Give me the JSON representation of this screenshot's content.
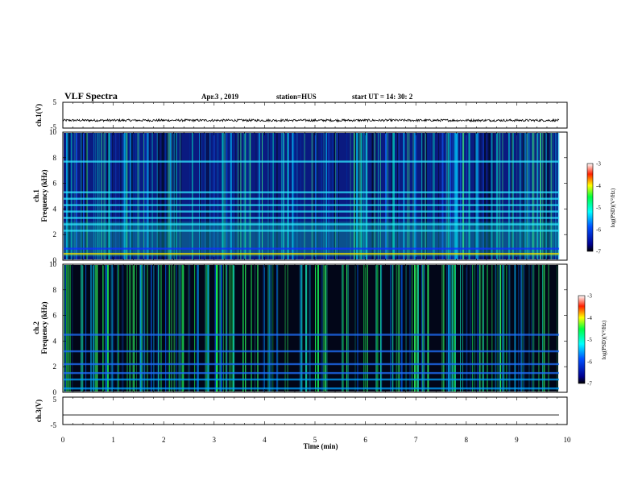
{
  "header": {
    "title": "VLF Spectra",
    "date": "Apr.3  , 2019",
    "station": "station=HUS",
    "start": "start  UT =   14: 30: 2"
  },
  "chart_data": [
    {
      "type": "line",
      "name": "ch1-waveform",
      "ylabel": "ch.1(V)",
      "ylim": [
        -5,
        5
      ],
      "yticks": [
        "5",
        "-5"
      ],
      "xlim": [
        0,
        10
      ],
      "baseline": -2,
      "noise_amplitude": 0.45
    },
    {
      "type": "heatmap",
      "name": "ch1-spectrogram",
      "ylabel": "ch.1\nFrequency  (kHz)",
      "ylim": [
        0,
        10
      ],
      "yticks": [
        "0",
        "2",
        "4",
        "6",
        "8",
        "10"
      ],
      "xlim": [
        0,
        9.84
      ],
      "bands_khz": [
        0.5,
        0.9,
        2.3,
        2.8,
        3.3,
        3.8,
        4.3,
        4.8,
        5.3,
        7.7
      ],
      "colorbar": {
        "label": "log(PSD)(V²/Hz)",
        "range": [
          -7,
          -3
        ],
        "ticks": [
          "-3",
          "-4",
          "-5",
          "-6",
          "-7"
        ]
      }
    },
    {
      "type": "heatmap",
      "name": "ch2-spectrogram",
      "ylabel": "ch.2\nFrequency  (kHz)",
      "ylim": [
        0,
        10
      ],
      "yticks": [
        "0",
        "2",
        "4",
        "6",
        "8",
        "10"
      ],
      "xlim": [
        0,
        9.84
      ],
      "bands_khz": [
        0.3,
        1.0,
        1.5,
        2.2,
        3.2,
        4.5
      ],
      "colorbar": {
        "label": "log(PSD)(V²/Hz)",
        "range": [
          -7,
          -3
        ],
        "ticks": [
          "-3",
          "-4",
          "-5",
          "-6",
          "-7"
        ]
      }
    },
    {
      "type": "line",
      "name": "ch3-waveform",
      "ylabel": "ch.3(V)",
      "ylim": [
        -5,
        5
      ],
      "yticks": [
        "5",
        "-5"
      ],
      "xlim": [
        0,
        10
      ],
      "baseline": -1.5,
      "noise_amplitude": 0
    }
  ],
  "xaxis": {
    "label": "Time  (min)",
    "range": [
      0,
      10
    ],
    "ticks": [
      "0",
      "1",
      "2",
      "3",
      "4",
      "5",
      "6",
      "7",
      "8",
      "9",
      "10"
    ]
  }
}
